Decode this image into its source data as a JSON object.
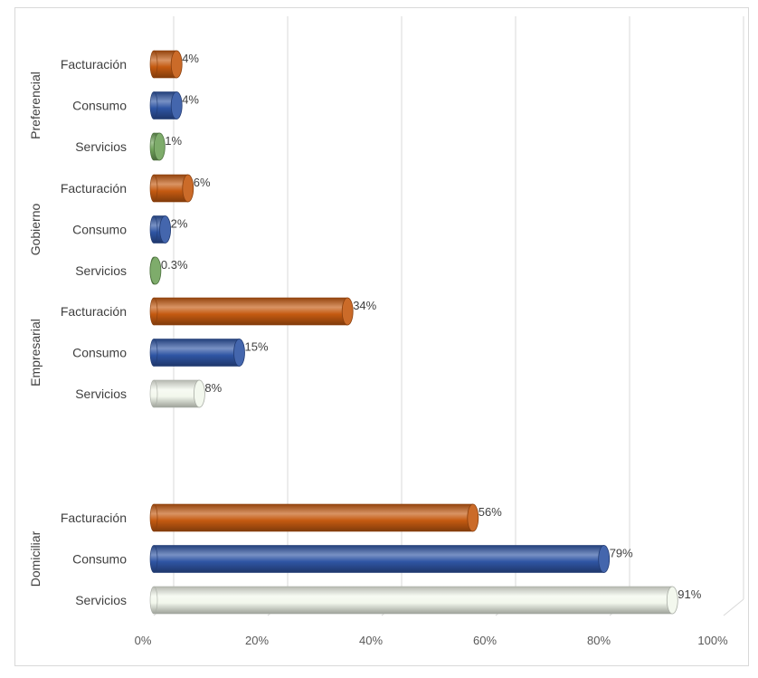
{
  "chart_data": {
    "type": "bar",
    "orientation": "horizontal",
    "title": "",
    "xlabel": "",
    "ylabel": "",
    "xlim": [
      0,
      100
    ],
    "x_ticks": [
      "0%",
      "20%",
      "40%",
      "60%",
      "80%",
      "100%"
    ],
    "grid": "vertical",
    "legend": "none",
    "groups": [
      {
        "name": "Preferencial",
        "bars": [
          {
            "category": "Facturación",
            "value": 4,
            "label": "4%",
            "color": "#c55a11"
          },
          {
            "category": "Consumo",
            "value": 4,
            "label": "4%",
            "color": "#2f55a4"
          },
          {
            "category": "Servicios",
            "value": 1,
            "label": "1%",
            "color": "#70a35a"
          }
        ]
      },
      {
        "name": "Gobierno",
        "bars": [
          {
            "category": "Facturación",
            "value": 6,
            "label": "6%",
            "color": "#c55a11"
          },
          {
            "category": "Consumo",
            "value": 2,
            "label": "2%",
            "color": "#2f55a4"
          },
          {
            "category": "Servicios",
            "value": 0.3,
            "label": "0.3%",
            "color": "#70a35a"
          }
        ]
      },
      {
        "name": "Empresarial",
        "bars": [
          {
            "category": "Facturación",
            "value": 34,
            "label": "34%",
            "color": "#c55a11"
          },
          {
            "category": "Consumo",
            "value": 15,
            "label": "15%",
            "color": "#2f55a4"
          },
          {
            "category": "Servicios",
            "value": 8,
            "label": "8%",
            "color": "#f2f7ec"
          }
        ]
      },
      {
        "name": "Domiciliar",
        "bars": [
          {
            "category": "Facturación",
            "value": 56,
            "label": "56%",
            "color": "#c55a11"
          },
          {
            "category": "Consumo",
            "value": 79,
            "label": "79%",
            "color": "#2f55a4"
          },
          {
            "category": "Servicios",
            "value": 91,
            "label": "91%",
            "color": "#f2f7ec"
          }
        ]
      }
    ]
  }
}
